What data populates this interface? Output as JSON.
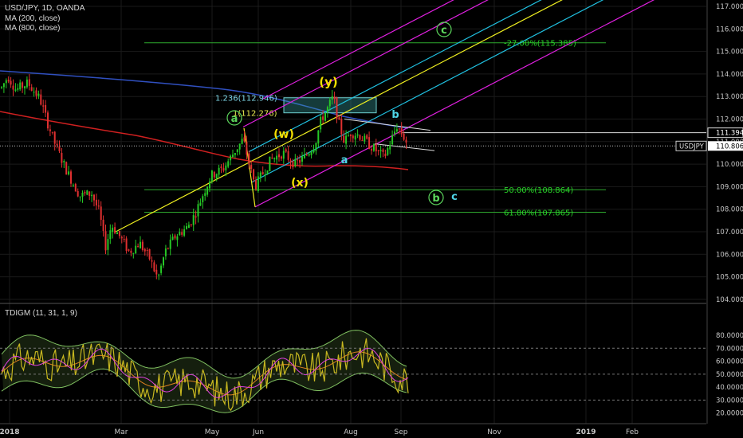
{
  "header": {
    "symbol_line": "USD/JPY, 1D, OANDA",
    "ma1": "MA (200, close)",
    "ma2": "MA (800, close)"
  },
  "indicator": {
    "label": "TDIGM (11, 31, 1, 9)"
  },
  "colors": {
    "background": "#000000",
    "grid": "#1a1a1a",
    "bull": "#26c826",
    "bear": "#e03030",
    "ma200": "#d02020",
    "ma800": "#3050c0",
    "pitch_outer": "#e020e0",
    "pitch_median": "#f0f020",
    "pitch_inner": "#20c0e0",
    "fib": "#2eaa2e",
    "fib_text": "#28d028",
    "wave_yellow": "#f5e100",
    "wave_green": "#5cd65c",
    "wave_cyan": "#4fd6e8",
    "rsi_band": "#7fbf60",
    "rsi_line": "#c8b820",
    "rsi_signal": "#e040e0",
    "rsi_mid": "#e08020"
  },
  "chart_data": [
    {
      "type": "candlestick",
      "title": "USD/JPY, 1D, OANDA",
      "x_ticks": [
        "2018",
        "Mar",
        "May",
        "Jun",
        "Aug",
        "Sep",
        "Nov",
        "2019",
        "Feb"
      ],
      "y_ticks": [
        "117.000",
        "116.000",
        "115.000",
        "114.000",
        "113.000",
        "112.000",
        "111.000",
        "110.000",
        "109.000",
        "108.000",
        "107.000",
        "106.000",
        "105.000",
        "104.000"
      ],
      "ylim": [
        103.8,
        117.3
      ],
      "price_labels": [
        {
          "name": "level",
          "value": "111.394"
        },
        {
          "name": "USDJPY",
          "value": "110.806"
        }
      ],
      "series": [
        {
          "name": "MA (200, close)",
          "role": "ma200"
        },
        {
          "name": "MA (800, close)",
          "role": "ma800"
        }
      ],
      "fib_levels": [
        {
          "label": "-27.00%(115.385)",
          "value": 115.385
        },
        {
          "label": "50.00%(108.864)",
          "value": 108.864
        },
        {
          "label": "61.80%(107.865)",
          "value": 107.865
        }
      ],
      "fib_box_labels": [
        {
          "label": "1.236(112.946)",
          "value": 112.946
        },
        {
          "label": "1(112.276)",
          "value": 112.276
        }
      ],
      "wave_labels": [
        {
          "text": "(y)",
          "style": "yellow"
        },
        {
          "text": "(w)",
          "style": "yellow"
        },
        {
          "text": "(x)",
          "style": "yellow"
        },
        {
          "text": "a",
          "style": "green-circle"
        },
        {
          "text": "c",
          "style": "green-circle"
        },
        {
          "text": "b",
          "style": "green-circle"
        },
        {
          "text": "b",
          "style": "cyan"
        },
        {
          "text": "a",
          "style": "cyan"
        },
        {
          "text": "c",
          "style": "cyan"
        }
      ]
    },
    {
      "type": "line",
      "title": "TDIGM (11, 31, 1, 9)",
      "y_ticks": [
        "80.0000",
        "70.0000",
        "60.0000",
        "50.0000",
        "40.0000",
        "30.0000",
        "20.0000"
      ],
      "ylim": [
        17,
        84
      ],
      "reference_lines": [
        70,
        50,
        30
      ]
    }
  ]
}
